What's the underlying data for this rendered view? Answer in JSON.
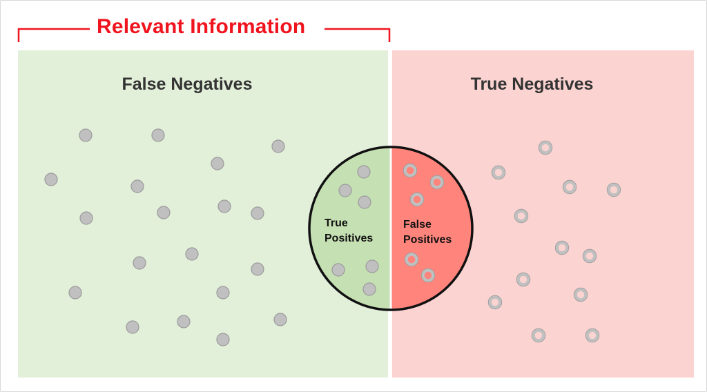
{
  "relevant_label": "Relevant Information",
  "left_panel": {
    "title": "False Negatives"
  },
  "right_panel": {
    "title": "True Negatives"
  },
  "circle": {
    "left_label_line1": "True",
    "left_label_line2": "Positives",
    "right_label_line1": "False",
    "right_label_line2": "Positives"
  },
  "colors": {
    "relevant_red": "#f0141e",
    "green_panel": "#e2efd9",
    "pink_panel": "#fbd3d1",
    "green_half": "#c5e0b3",
    "red_half": "#ff857c",
    "dot_fill": "#c0c0c0",
    "dot_stroke": "#9a9a9a"
  },
  "items": {
    "relevant_selected_count": 6,
    "relevant_unselected_count": 23,
    "irrelevant_selected_count": 5,
    "irrelevant_unselected_count": 15
  }
}
